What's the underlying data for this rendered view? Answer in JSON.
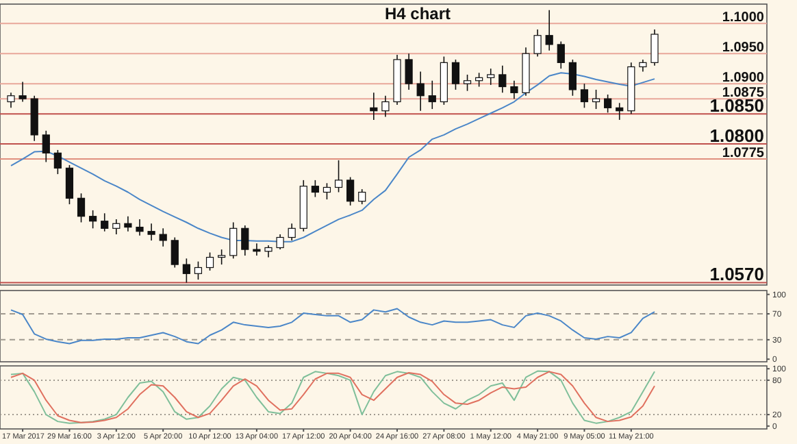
{
  "chart_data": [
    {
      "type": "candlestick",
      "title": "H4 chart",
      "tick_labels": false,
      "categories": [
        null,
        null,
        null,
        null,
        null,
        null,
        null,
        null,
        null,
        null,
        null,
        null,
        null,
        null,
        null,
        null,
        null,
        null,
        null,
        null,
        null,
        null,
        null,
        null,
        null,
        null,
        null,
        null,
        null,
        null,
        null,
        null,
        null,
        null,
        null,
        null,
        null,
        null,
        null,
        null,
        null,
        null,
        null,
        null,
        null,
        null,
        null,
        null,
        null,
        null,
        null,
        null,
        null,
        null,
        null,
        null
      ],
      "ohlc": [
        [
          1.087,
          1.0885,
          1.086,
          1.088
        ],
        [
          1.088,
          1.0903,
          1.087,
          1.0875
        ],
        [
          1.0875,
          1.088,
          1.0805,
          1.0815
        ],
        [
          1.0815,
          1.0822,
          1.077,
          1.0785
        ],
        [
          1.0785,
          1.079,
          1.075,
          1.076
        ],
        [
          1.076,
          1.0765,
          1.07,
          1.071
        ],
        [
          1.071,
          1.0718,
          1.067,
          1.068
        ],
        [
          1.068,
          1.069,
          1.066,
          1.0672
        ],
        [
          1.0672,
          1.0685,
          1.0655,
          1.066
        ],
        [
          1.066,
          1.0675,
          1.065,
          1.0668
        ],
        [
          1.0668,
          1.068,
          1.0655,
          1.0662
        ],
        [
          1.0662,
          1.0675,
          1.0648,
          1.0655
        ],
        [
          1.0655,
          1.0668,
          1.064,
          1.065
        ],
        [
          1.065,
          1.066,
          1.063,
          1.064
        ],
        [
          1.064,
          1.0645,
          1.0595,
          1.06
        ],
        [
          1.06,
          1.061,
          1.057,
          1.0585
        ],
        [
          1.0585,
          1.0605,
          1.0575,
          1.0595
        ],
        [
          1.0595,
          1.062,
          1.059,
          1.0612
        ],
        [
          1.0612,
          1.0625,
          1.06,
          1.0615
        ],
        [
          1.0615,
          1.067,
          1.061,
          1.066
        ],
        [
          1.066,
          1.0665,
          1.0615,
          1.0625
        ],
        [
          1.0625,
          1.0635,
          1.0615,
          1.0622
        ],
        [
          1.0622,
          1.0632,
          1.0612,
          1.0628
        ],
        [
          1.0628,
          1.065,
          1.0625,
          1.0645
        ],
        [
          1.0645,
          1.0668,
          1.064,
          1.066
        ],
        [
          1.066,
          1.074,
          1.0655,
          1.073
        ],
        [
          1.073,
          1.074,
          1.0712,
          1.072
        ],
        [
          1.072,
          1.0735,
          1.0708,
          1.0728
        ],
        [
          1.0728,
          1.0773,
          1.072,
          1.074
        ],
        [
          1.074,
          1.0745,
          1.0698,
          1.0705
        ],
        [
          1.0705,
          1.0725,
          1.07,
          1.072
        ],
        [
          1.086,
          1.0885,
          1.084,
          1.0855
        ],
        [
          1.0855,
          1.088,
          1.0845,
          1.087
        ],
        [
          1.087,
          1.0948,
          1.0865,
          1.094
        ],
        [
          1.094,
          1.095,
          1.089,
          1.09
        ],
        [
          1.09,
          1.092,
          1.0855,
          1.088
        ],
        [
          1.088,
          1.0905,
          1.0858,
          1.087
        ],
        [
          1.087,
          1.0945,
          1.0865,
          1.0935
        ],
        [
          1.0935,
          1.094,
          1.089,
          1.09
        ],
        [
          1.09,
          1.0915,
          1.0888,
          1.0905
        ],
        [
          1.0905,
          1.0918,
          1.0895,
          1.091
        ],
        [
          1.091,
          1.0925,
          1.0898,
          1.0915
        ],
        [
          1.0915,
          1.093,
          1.0885,
          1.0895
        ],
        [
          1.0895,
          1.0905,
          1.0875,
          1.0885
        ],
        [
          1.0885,
          1.096,
          1.088,
          1.095
        ],
        [
          1.095,
          1.099,
          1.0945,
          1.098
        ],
        [
          1.098,
          1.1022,
          1.0955,
          1.0965
        ],
        [
          1.0965,
          1.097,
          1.0925,
          1.0935
        ],
        [
          1.0935,
          1.094,
          1.088,
          1.089
        ],
        [
          1.089,
          1.09,
          1.086,
          1.087
        ],
        [
          1.087,
          1.089,
          1.0858,
          1.0875
        ],
        [
          1.0875,
          1.0882,
          1.0852,
          1.086
        ],
        [
          1.086,
          1.0868,
          1.084,
          1.0855
        ],
        [
          1.0855,
          1.0935,
          1.085,
          1.0928
        ],
        [
          1.0928,
          1.094,
          1.092,
          1.0935
        ],
        [
          1.0935,
          1.099,
          1.093,
          1.0982
        ]
      ],
      "series": [
        {
          "type": "line",
          "color": "#4a86c8",
          "values": [
            1.0764,
            1.0775,
            1.0787,
            1.0788,
            1.078,
            1.077,
            1.076,
            1.075,
            1.0739,
            1.073,
            1.072,
            1.0708,
            1.0698,
            1.0688,
            1.0679,
            1.067,
            1.066,
            1.0652,
            1.0645,
            1.064,
            1.064,
            1.0639,
            1.0639,
            1.0638,
            1.0638,
            1.0645,
            1.0655,
            1.0665,
            1.0675,
            1.0682,
            1.069,
            1.0708,
            1.0723,
            1.075,
            1.0778,
            1.079,
            1.0808,
            1.0815,
            1.0825,
            1.0833,
            1.0842,
            1.0851,
            1.086,
            1.087,
            1.0885,
            1.0898,
            1.0913,
            1.0918,
            1.0916,
            1.0912,
            1.0907,
            1.0903,
            1.0899,
            1.0896,
            1.0902,
            1.0908
          ]
        }
      ],
      "ylim": [
        1.0566,
        1.1032
      ],
      "ref_lines": [
        {
          "axis": "y",
          "value": 1.1,
          "label": "1.1000",
          "color": "#e8a79a"
        },
        {
          "axis": "y",
          "value": 1.095,
          "label": "1.0950",
          "color": "#e8a79a"
        },
        {
          "axis": "y",
          "value": 1.09,
          "label": "1.0900",
          "color": "#e8a79a"
        },
        {
          "axis": "y",
          "value": 1.0875,
          "label": "1.0875",
          "color": "#e8a79a"
        },
        {
          "axis": "y",
          "value": 1.085,
          "label": "1.0850",
          "color": "#c0504d"
        },
        {
          "axis": "y",
          "value": 1.08,
          "label": "1.0800",
          "color": "#c0504d"
        },
        {
          "axis": "y",
          "value": 1.0775,
          "label": "1.0775",
          "color": "#e0907f"
        },
        {
          "axis": "y",
          "value": 1.057,
          "label": "1.0570",
          "color": "#c0504d"
        }
      ]
    },
    {
      "type": "line",
      "tick_labels": "y",
      "categories": [
        null,
        null,
        null,
        null,
        null,
        null,
        null,
        null,
        null,
        null,
        null,
        null,
        null,
        null,
        null,
        null,
        null,
        null,
        null,
        null,
        null,
        null,
        null,
        null,
        null,
        null,
        null,
        null,
        null,
        null,
        null,
        null,
        null,
        null,
        null,
        null,
        null,
        null,
        null,
        null,
        null,
        null,
        null,
        null,
        null,
        null,
        null,
        null,
        null,
        null,
        null,
        null,
        null,
        null,
        null,
        null
      ],
      "series": [
        {
          "color": "#4a86c8",
          "values": [
            76,
            69,
            39,
            31,
            27,
            24,
            29,
            29,
            31,
            31,
            33,
            33,
            37,
            41,
            35,
            27,
            24,
            37,
            45,
            57,
            53,
            51,
            49,
            51,
            57,
            71,
            69,
            67,
            67,
            57,
            61,
            76,
            73,
            78,
            65,
            57,
            53,
            59,
            57,
            57,
            59,
            61,
            53,
            49,
            67,
            71,
            67,
            59,
            45,
            33,
            31,
            35,
            33,
            41,
            63,
            73
          ]
        }
      ],
      "ylim": [
        -4,
        106
      ],
      "yticks": [
        100,
        70,
        30,
        0
      ],
      "ref_lines": [
        {
          "axis": "y",
          "value": 70,
          "color": "#a09a90",
          "line_style": "dashed"
        },
        {
          "axis": "y",
          "value": 30,
          "color": "#a09a90",
          "line_style": "dashed"
        }
      ]
    },
    {
      "type": "line",
      "categories": [
        null,
        "17 Mar 2017",
        null,
        null,
        null,
        "29 Mar 16:00",
        null,
        null,
        null,
        "3 Apr 12:00",
        null,
        null,
        null,
        "5 Apr 20:00",
        null,
        null,
        null,
        "10 Apr 12:00",
        null,
        null,
        null,
        "13 Apr 04:00",
        null,
        null,
        null,
        "17 Apr 12:00",
        null,
        null,
        null,
        "20 Apr 04:00",
        null,
        null,
        null,
        "24 Apr 16:00",
        null,
        null,
        null,
        "27 Apr 08:00",
        null,
        null,
        null,
        "1 May 12:00",
        null,
        null,
        null,
        "4 May 21:00",
        null,
        null,
        null,
        "9 May 05:00",
        null,
        null,
        null,
        "11 May 21:00",
        null,
        null
      ],
      "series": [
        {
          "color": "#7fbf9a",
          "values": [
            90,
            92,
            60,
            20,
            8,
            5,
            6,
            8,
            12,
            20,
            50,
            75,
            78,
            60,
            25,
            12,
            15,
            35,
            65,
            85,
            80,
            50,
            25,
            22,
            40,
            85,
            95,
            92,
            88,
            80,
            20,
            60,
            88,
            95,
            92,
            85,
            60,
            40,
            30,
            45,
            55,
            70,
            75,
            45,
            85,
            96,
            95,
            80,
            40,
            10,
            5,
            8,
            15,
            25,
            60,
            95
          ]
        },
        {
          "color": "#e0705f",
          "values": [
            85,
            92,
            80,
            45,
            18,
            10,
            6,
            7,
            10,
            15,
            30,
            55,
            72,
            70,
            50,
            25,
            15,
            22,
            45,
            70,
            82,
            70,
            45,
            28,
            30,
            55,
            82,
            92,
            92,
            85,
            55,
            45,
            65,
            85,
            93,
            90,
            78,
            55,
            40,
            38,
            45,
            58,
            68,
            65,
            68,
            85,
            95,
            90,
            70,
            40,
            15,
            8,
            10,
            16,
            35,
            70
          ]
        }
      ],
      "ylim": [
        -5,
        105
      ],
      "yticks": [
        100,
        80,
        20,
        0
      ],
      "ref_lines": [
        {
          "axis": "y",
          "value": 80,
          "color": "#a09a90",
          "line_style": "dotted"
        },
        {
          "axis": "y",
          "value": 20,
          "color": "#a09a90",
          "line_style": "dotted"
        }
      ]
    }
  ]
}
